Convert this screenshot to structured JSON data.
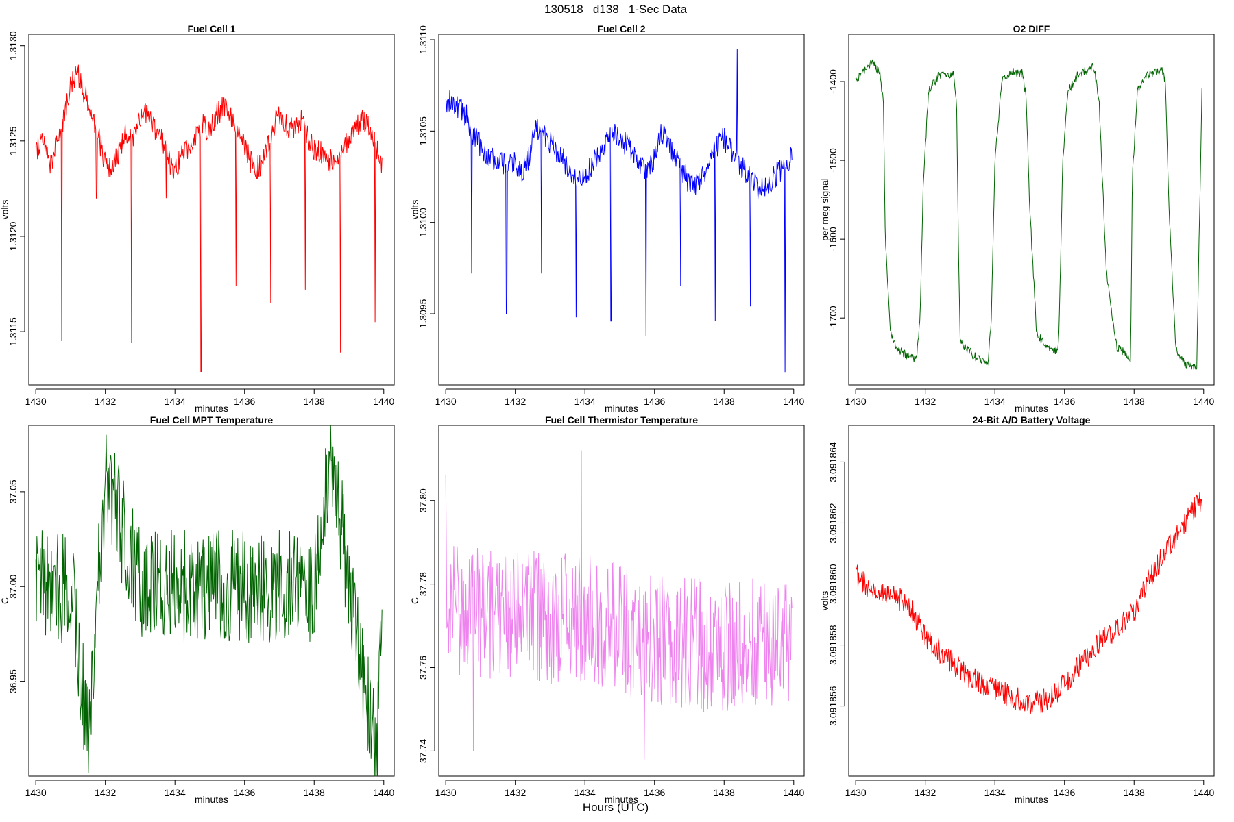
{
  "page": {
    "main_title": "130518   d138   1-Sec Data",
    "bottom_label": "Hours (UTC)"
  },
  "chart_data": [
    {
      "type": "line",
      "title": "Fuel Cell 1",
      "xlabel": "minutes",
      "ylabel": "volts",
      "color": "#ff0000",
      "xlim": [
        1429.8,
        1440.3
      ],
      "ylim": [
        1.31122,
        1.31306
      ],
      "xticks": [
        1430,
        1432,
        1434,
        1436,
        1438,
        1440
      ],
      "yticks": [
        1.3115,
        1.312,
        1.3125,
        1.313
      ],
      "ytick_labels": [
        "1.3115",
        "1.3120",
        "1.3125",
        "1.3130"
      ],
      "series": [
        {
          "x": [
            1430.0,
            1430.2,
            1430.4,
            1430.6,
            1430.8,
            1431.0,
            1431.2,
            1431.4,
            1431.6,
            1431.8,
            1432.0,
            1432.2,
            1432.4,
            1432.6,
            1432.8,
            1433.0,
            1433.2,
            1433.4,
            1433.6,
            1433.8,
            1434.0,
            1434.2,
            1434.4,
            1434.6,
            1434.8,
            1435.0,
            1435.2,
            1435.4,
            1435.6,
            1435.8,
            1436.0,
            1436.2,
            1436.4,
            1436.6,
            1436.8,
            1437.0,
            1437.2,
            1437.4,
            1437.6,
            1437.8,
            1438.0,
            1438.2,
            1438.4,
            1438.6,
            1438.8,
            1439.0,
            1439.2,
            1439.4,
            1439.6,
            1439.8,
            1439.95
          ],
          "y": [
            1.31245,
            1.31252,
            1.31238,
            1.31248,
            1.31262,
            1.31278,
            1.31285,
            1.31275,
            1.31268,
            1.31252,
            1.31238,
            1.31235,
            1.31244,
            1.31255,
            1.31248,
            1.31262,
            1.31266,
            1.31258,
            1.31252,
            1.3124,
            1.31235,
            1.31242,
            1.31248,
            1.31252,
            1.31258,
            1.31256,
            1.31264,
            1.31268,
            1.31262,
            1.31255,
            1.31248,
            1.31238,
            1.31236,
            1.31242,
            1.31258,
            1.31262,
            1.31258,
            1.31256,
            1.31262,
            1.31252,
            1.31246,
            1.31244,
            1.31238,
            1.31242,
            1.31244,
            1.31252,
            1.31258,
            1.31262,
            1.31256,
            1.31246,
            1.31236
          ]
        }
      ],
      "spikes": [
        [
          1430.75,
          1.31145
        ],
        [
          1431.75,
          1.3122
        ],
        [
          1432.75,
          1.31144
        ],
        [
          1433.75,
          1.3122
        ],
        [
          1434.75,
          1.31129
        ],
        [
          1435.75,
          1.31174
        ],
        [
          1436.75,
          1.31165
        ],
        [
          1437.75,
          1.31172
        ],
        [
          1438.75,
          1.31139
        ],
        [
          1439.75,
          1.31155
        ]
      ]
    },
    {
      "type": "line",
      "title": "Fuel Cell 2",
      "xlabel": "minutes",
      "ylabel": "volts",
      "color": "#0000ff",
      "xlim": [
        1429.8,
        1440.3
      ],
      "ylim": [
        1.30911,
        1.31103
      ],
      "xticks": [
        1430,
        1432,
        1434,
        1436,
        1438,
        1440
      ],
      "yticks": [
        1.3095,
        1.31,
        1.3105,
        1.311
      ],
      "ytick_labels": [
        "1.3095",
        "1.3100",
        "1.3105",
        "1.3110"
      ],
      "series": [
        {
          "x": [
            1430.0,
            1430.2,
            1430.4,
            1430.6,
            1430.8,
            1431.0,
            1431.2,
            1431.4,
            1431.6,
            1431.8,
            1432.0,
            1432.2,
            1432.4,
            1432.6,
            1432.8,
            1433.0,
            1433.2,
            1433.4,
            1433.6,
            1433.8,
            1434.0,
            1434.2,
            1434.4,
            1434.6,
            1434.8,
            1435.0,
            1435.2,
            1435.4,
            1435.6,
            1435.8,
            1436.0,
            1436.2,
            1436.4,
            1436.6,
            1436.8,
            1437.0,
            1437.2,
            1437.4,
            1437.6,
            1437.8,
            1438.0,
            1438.2,
            1438.4,
            1438.6,
            1438.8,
            1439.0,
            1439.2,
            1439.4,
            1439.6,
            1439.8,
            1439.95
          ],
          "y": [
            1.31065,
            1.31068,
            1.31062,
            1.31058,
            1.31048,
            1.31042,
            1.31038,
            1.31035,
            1.31032,
            1.31034,
            1.31032,
            1.31028,
            1.31036,
            1.31052,
            1.31048,
            1.31044,
            1.31038,
            1.31034,
            1.31028,
            1.31024,
            1.31026,
            1.31032,
            1.31038,
            1.31042,
            1.31048,
            1.31046,
            1.31042,
            1.31038,
            1.31032,
            1.31028,
            1.31036,
            1.31048,
            1.31044,
            1.31036,
            1.31028,
            1.31022,
            1.3102,
            1.31026,
            1.31038,
            1.31042,
            1.31046,
            1.3104,
            1.31034,
            1.31028,
            1.31024,
            1.31018,
            1.3102,
            1.31024,
            1.31028,
            1.31032,
            1.31036
          ]
        }
      ],
      "spikes": [
        [
          1430.75,
          1.30972
        ],
        [
          1431.75,
          1.3095
        ],
        [
          1432.75,
          1.30972
        ],
        [
          1433.75,
          1.30948
        ],
        [
          1434.75,
          1.30946
        ],
        [
          1435.75,
          1.30938
        ],
        [
          1436.75,
          1.30965
        ],
        [
          1437.75,
          1.30946
        ],
        [
          1438.75,
          1.30954
        ],
        [
          1439.75,
          1.30918
        ]
      ],
      "peaks": [
        [
          1438.38,
          1.31095
        ]
      ]
    },
    {
      "type": "line",
      "title": "O2 DIFF",
      "xlabel": "minutes",
      "ylabel": "per meg signal",
      "color": "#006400",
      "xlim": [
        1429.8,
        1440.3
      ],
      "ylim": [
        -1785,
        -1340
      ],
      "xticks": [
        1430,
        1432,
        1434,
        1436,
        1438,
        1440
      ],
      "yticks": [
        -1700,
        -1600,
        -1500,
        -1400
      ],
      "ytick_labels": [
        "-1700",
        "-1600",
        "-1500",
        "-1400"
      ],
      "series": [
        {
          "x": [
            1430.0,
            1430.3,
            1430.5,
            1430.7,
            1430.8,
            1430.85,
            1431.0,
            1431.2,
            1431.5,
            1431.75,
            1431.85,
            1431.95,
            1432.1,
            1432.4,
            1432.8,
            1432.9,
            1432.95,
            1433.0,
            1433.2,
            1433.5,
            1433.8,
            1433.9,
            1434.0,
            1434.2,
            1434.5,
            1434.8,
            1434.9,
            1435.0,
            1435.2,
            1435.5,
            1435.8,
            1435.85,
            1435.95,
            1436.1,
            1436.4,
            1436.8,
            1436.9,
            1437.0,
            1437.2,
            1437.5,
            1437.8,
            1437.9,
            1437.95,
            1438.1,
            1438.4,
            1438.8,
            1438.9,
            1439.0,
            1439.2,
            1439.5,
            1439.8,
            1439.95
          ],
          "y": [
            -1398,
            -1385,
            -1375,
            -1390,
            -1430,
            -1600,
            -1720,
            -1740,
            -1748,
            -1752,
            -1700,
            -1520,
            -1410,
            -1392,
            -1390,
            -1430,
            -1600,
            -1730,
            -1740,
            -1752,
            -1758,
            -1700,
            -1500,
            -1400,
            -1388,
            -1390,
            -1420,
            -1560,
            -1720,
            -1738,
            -1742,
            -1705,
            -1500,
            -1412,
            -1390,
            -1382,
            -1395,
            -1430,
            -1640,
            -1738,
            -1746,
            -1755,
            -1520,
            -1410,
            -1392,
            -1385,
            -1400,
            -1560,
            -1740,
            -1760,
            -1762,
            -1412
          ]
        }
      ]
    },
    {
      "type": "line",
      "title": "Fuel Cell MPT Temperature",
      "xlabel": "minutes",
      "ylabel": "C",
      "color": "#006400",
      "xlim": [
        1429.8,
        1440.3
      ],
      "ylim": [
        36.9,
        37.085
      ],
      "xticks": [
        1430,
        1432,
        1434,
        1436,
        1438,
        1440
      ],
      "yticks": [
        36.95,
        37.0,
        37.05
      ],
      "ytick_labels": [
        "36.95",
        "37.00",
        "37.05"
      ],
      "mean": 37.0,
      "amplitude": 0.03,
      "series": [
        {
          "x": [
            1430.0,
            1431.0,
            1431.5,
            1432.0,
            1433.0,
            1434.0,
            1435.0,
            1436.0,
            1437.0,
            1438.0,
            1438.5,
            1439.0,
            1439.8,
            1439.95
          ],
          "y": [
            37.0,
            37.0,
            36.92,
            37.06,
            37.0,
            37.0,
            37.0,
            37.0,
            37.0,
            37.0,
            37.07,
            37.0,
            36.91,
            37.0
          ]
        }
      ]
    },
    {
      "type": "line",
      "title": "Fuel Cell Thermistor Temperature",
      "xlabel": "minutes",
      "ylabel": "C",
      "color": "#ee82ee",
      "xlim": [
        1429.8,
        1440.3
      ],
      "ylim": [
        37.734,
        37.818
      ],
      "xticks": [
        1430,
        1432,
        1434,
        1436,
        1438,
        1440
      ],
      "yticks": [
        37.74,
        37.76,
        37.78,
        37.8
      ],
      "ytick_labels": [
        "37.74",
        "37.76",
        "37.78",
        "37.80"
      ],
      "amplitude": 0.016,
      "series": [
        {
          "x": [
            1430.0,
            1432.0,
            1434.0,
            1436.0,
            1438.0,
            1439.95
          ],
          "y": [
            37.774,
            37.772,
            37.772,
            37.766,
            37.765,
            37.766
          ]
        }
      ],
      "peaks": [
        [
          1433.9,
          37.812
        ],
        [
          1430.0,
          37.806
        ]
      ],
      "troughs": [
        [
          1435.7,
          37.738
        ],
        [
          1430.8,
          37.74
        ]
      ]
    },
    {
      "type": "line",
      "title": "24-Bit A/D Battery Voltage",
      "xlabel": "minutes",
      "ylabel": "volts",
      "color": "#ff0000",
      "xlim": [
        1429.8,
        1440.3
      ],
      "ylim": [
        3.0918537,
        3.0918652
      ],
      "xticks": [
        1430,
        1432,
        1434,
        1436,
        1438,
        1440
      ],
      "yticks": [
        3.091856,
        3.091858,
        3.09186,
        3.091862,
        3.091864
      ],
      "ytick_labels": [
        "3.091856",
        "3.091858",
        "3.091860",
        "3.091862",
        "3.091864"
      ],
      "series": [
        {
          "x": [
            1430.0,
            1430.5,
            1431.0,
            1431.5,
            1432.0,
            1432.5,
            1433.0,
            1433.5,
            1434.0,
            1434.5,
            1435.0,
            1435.5,
            1436.0,
            1436.5,
            1437.0,
            1437.5,
            1438.0,
            1438.5,
            1439.0,
            1439.5,
            1439.95
          ],
          "y": [
            3.0918603,
            3.0918598,
            3.0918596,
            3.0918594,
            3.0918583,
            3.0918577,
            3.0918572,
            3.0918568,
            3.0918565,
            3.0918563,
            3.0918561,
            3.0918562,
            3.0918567,
            3.0918574,
            3.0918581,
            3.0918585,
            3.0918591,
            3.0918603,
            3.0918612,
            3.0918621,
            3.0918628
          ]
        }
      ]
    }
  ]
}
